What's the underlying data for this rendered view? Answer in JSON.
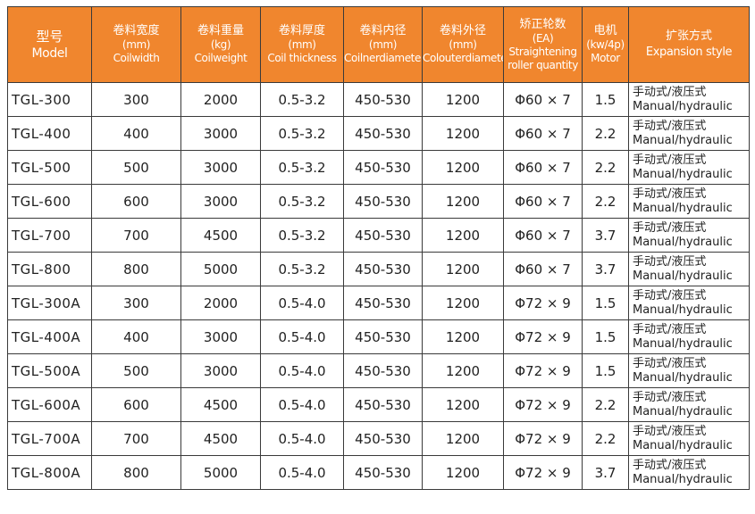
{
  "headers": [
    {
      "zh": "型号",
      "en": [
        "Model"
      ]
    },
    {
      "zh": "卷料宽度",
      "en": [
        "(mm)",
        "Coilwidth"
      ]
    },
    {
      "zh": "卷料重量",
      "en": [
        "(kg)",
        "Coilweight"
      ]
    },
    {
      "zh": "卷料厚度",
      "en": [
        "(mm)",
        "Coil thickness"
      ]
    },
    {
      "zh": "卷料内径",
      "en": [
        "(mm)",
        "Coilnerdiameter"
      ]
    },
    {
      "zh": "卷料外径",
      "en": [
        "(mm)",
        "Colouterdiameter"
      ]
    },
    {
      "zh": "矫正轮数",
      "en": [
        "(EA)",
        "Straightening",
        "roller quantity"
      ]
    },
    {
      "zh": "电机",
      "en": [
        "(kw/4p)",
        "Motor"
      ]
    },
    {
      "zh": "扩张方式",
      "en": [
        "Expansion style"
      ]
    }
  ],
  "rows": [
    {
      "model": "TGL-300",
      "width": "300",
      "weight": "2000",
      "thickness": "0.5-3.2",
      "inner": "450-530",
      "outer": "1200",
      "rollers": "Φ60 × 7",
      "motor": "1.5",
      "exp_zh": "手动式/液压式",
      "exp_en": "Manual/hydraulic"
    },
    {
      "model": "TGL-400",
      "width": "400",
      "weight": "3000",
      "thickness": "0.5-3.2",
      "inner": "450-530",
      "outer": "1200",
      "rollers": "Φ60 × 7",
      "motor": "2.2",
      "exp_zh": "手动式/液压式",
      "exp_en": "Manual/hydraulic"
    },
    {
      "model": "TGL-500",
      "width": "500",
      "weight": "3000",
      "thickness": "0.5-3.2",
      "inner": "450-530",
      "outer": "1200",
      "rollers": "Φ60 × 7",
      "motor": "2.2",
      "exp_zh": "手动式/液压式",
      "exp_en": "Manual/hydraulic"
    },
    {
      "model": "TGL-600",
      "width": "600",
      "weight": "3000",
      "thickness": "0.5-3.2",
      "inner": "450-530",
      "outer": "1200",
      "rollers": "Φ60 × 7",
      "motor": "2.2",
      "exp_zh": "手动式/液压式",
      "exp_en": "Manual/hydraulic"
    },
    {
      "model": "TGL-700",
      "width": "700",
      "weight": "4500",
      "thickness": "0.5-3.2",
      "inner": "450-530",
      "outer": "1200",
      "rollers": "Φ60 × 7",
      "motor": "3.7",
      "exp_zh": "手动式/液压式",
      "exp_en": "Manual/hydraulic"
    },
    {
      "model": "TGL-800",
      "width": "800",
      "weight": "5000",
      "thickness": "0.5-3.2",
      "inner": "450-530",
      "outer": "1200",
      "rollers": "Φ60 × 7",
      "motor": "3.7",
      "exp_zh": "手动式/液压式",
      "exp_en": "Manual/hydraulic"
    },
    {
      "model": "TGL-300A",
      "width": "300",
      "weight": "2000",
      "thickness": "0.5-4.0",
      "inner": "450-530",
      "outer": "1200",
      "rollers": "Φ72 × 9",
      "motor": "1.5",
      "exp_zh": "手动式/液压式",
      "exp_en": "Manual/hydraulic"
    },
    {
      "model": "TGL-400A",
      "width": "400",
      "weight": "3000",
      "thickness": "0.5-4.0",
      "inner": "450-530",
      "outer": "1200",
      "rollers": "Φ72 × 9",
      "motor": "1.5",
      "exp_zh": "手动式/液压式",
      "exp_en": "Manual/hydraulic"
    },
    {
      "model": "TGL-500A",
      "width": "500",
      "weight": "3000",
      "thickness": "0.5-4.0",
      "inner": "450-530",
      "outer": "1200",
      "rollers": "Φ72 × 9",
      "motor": "1.5",
      "exp_zh": "手动式/液压式",
      "exp_en": "Manual/hydraulic"
    },
    {
      "model": "TGL-600A",
      "width": "600",
      "weight": "4500",
      "thickness": "0.5-4.0",
      "inner": "450-530",
      "outer": "1200",
      "rollers": "Φ72 × 9",
      "motor": "2.2",
      "exp_zh": "手动式/液压式",
      "exp_en": "Manual/hydraulic"
    },
    {
      "model": "TGL-700A",
      "width": "700",
      "weight": "4500",
      "thickness": "0.5-4.0",
      "inner": "450-530",
      "outer": "1200",
      "rollers": "Φ72 × 9",
      "motor": "2.2",
      "exp_zh": "手动式/液压式",
      "exp_en": "Manual/hydraulic"
    },
    {
      "model": "TGL-800A",
      "width": "800",
      "weight": "5000",
      "thickness": "0.5-4.0",
      "inner": "450-530",
      "outer": "1200",
      "rollers": "Φ72 × 9",
      "motor": "3.7",
      "exp_zh": "手动式/液压式",
      "exp_en": "Manual/hydraulic"
    }
  ],
  "colors": {
    "header_bg": "#f0862e",
    "header_text": "#ffffff",
    "border": "#3a3a3a"
  }
}
